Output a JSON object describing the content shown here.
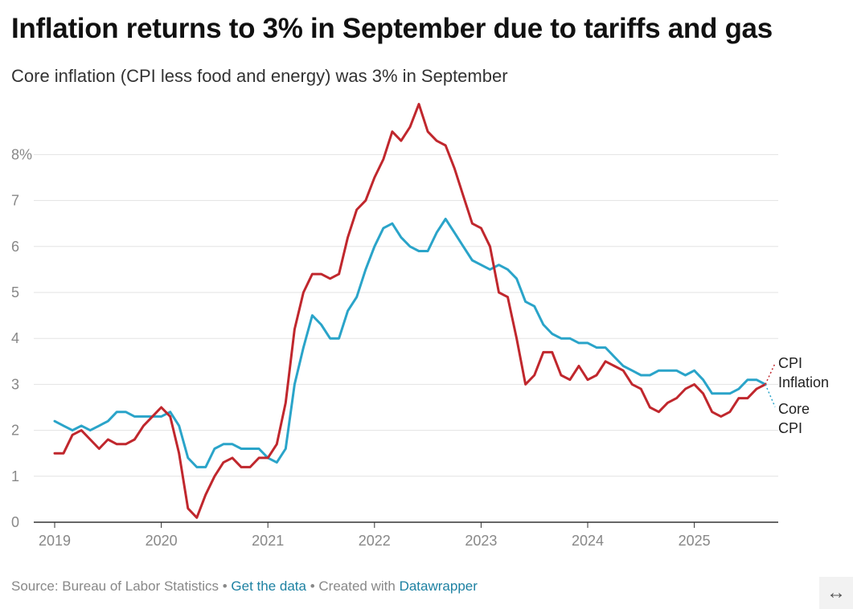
{
  "title": "Inflation returns to 3% in September due to tariffs and gas",
  "subtitle": "Core inflation (CPI less food and energy) was 3% in September",
  "footer": {
    "source": "Source: Bureau of Labor Statistics",
    "sep1": "•",
    "get_data": "Get the data",
    "sep2": "•",
    "created": "Created with",
    "datawrapper": "Datawrapper"
  },
  "expand_icon": "↔",
  "colors": {
    "cpi": "#c0272d",
    "core": "#2aa4c9",
    "grid": "#e3e3e3",
    "axis": "#333333"
  },
  "chart_data": {
    "type": "line",
    "x_start": "2019-01",
    "x_end": "2025-09",
    "frequency": "monthly",
    "y_ticks": [
      {
        "value": 0,
        "label": "0"
      },
      {
        "value": 1,
        "label": "1"
      },
      {
        "value": 2,
        "label": "2"
      },
      {
        "value": 3,
        "label": "3"
      },
      {
        "value": 4,
        "label": "4"
      },
      {
        "value": 5,
        "label": "5"
      },
      {
        "value": 6,
        "label": "6"
      },
      {
        "value": 7,
        "label": "7"
      },
      {
        "value": 8,
        "label": "8%"
      }
    ],
    "x_ticks": [
      "2019",
      "2020",
      "2021",
      "2022",
      "2023",
      "2024",
      "2025"
    ],
    "ylim": [
      0,
      9
    ],
    "grid": true,
    "series": [
      {
        "name": "CPI Inflation",
        "label_lines": [
          "CPI",
          "Inflation"
        ],
        "color": "#c0272d",
        "values": [
          1.5,
          1.5,
          1.9,
          2.0,
          1.8,
          1.6,
          1.8,
          1.7,
          1.7,
          1.8,
          2.1,
          2.3,
          2.5,
          2.3,
          1.5,
          0.3,
          0.1,
          0.6,
          1.0,
          1.3,
          1.4,
          1.2,
          1.2,
          1.4,
          1.4,
          1.7,
          2.6,
          4.2,
          5.0,
          5.4,
          5.4,
          5.3,
          5.4,
          6.2,
          6.8,
          7.0,
          7.5,
          7.9,
          8.5,
          8.3,
          8.6,
          9.1,
          8.5,
          8.3,
          8.2,
          7.7,
          7.1,
          6.5,
          6.4,
          6.0,
          5.0,
          4.9,
          4.0,
          3.0,
          3.2,
          3.7,
          3.7,
          3.2,
          3.1,
          3.4,
          3.1,
          3.2,
          3.5,
          3.4,
          3.3,
          3.0,
          2.9,
          2.5,
          2.4,
          2.6,
          2.7,
          2.9,
          3.0,
          2.8,
          2.4,
          2.3,
          2.4,
          2.7,
          2.7,
          2.9,
          3.0
        ]
      },
      {
        "name": "Core CPI",
        "label_lines": [
          "Core",
          "CPI"
        ],
        "color": "#2aa4c9",
        "values": [
          2.2,
          2.1,
          2.0,
          2.1,
          2.0,
          2.1,
          2.2,
          2.4,
          2.4,
          2.3,
          2.3,
          2.3,
          2.3,
          2.4,
          2.1,
          1.4,
          1.2,
          1.2,
          1.6,
          1.7,
          1.7,
          1.6,
          1.6,
          1.6,
          1.4,
          1.3,
          1.6,
          3.0,
          3.8,
          4.5,
          4.3,
          4.0,
          4.0,
          4.6,
          4.9,
          5.5,
          6.0,
          6.4,
          6.5,
          6.2,
          6.0,
          5.9,
          5.9,
          6.3,
          6.6,
          6.3,
          6.0,
          5.7,
          5.6,
          5.5,
          5.6,
          5.5,
          5.3,
          4.8,
          4.7,
          4.3,
          4.1,
          4.0,
          4.0,
          3.9,
          3.9,
          3.8,
          3.8,
          3.6,
          3.4,
          3.3,
          3.2,
          3.2,
          3.3,
          3.3,
          3.3,
          3.2,
          3.3,
          3.1,
          2.8,
          2.8,
          2.8,
          2.9,
          3.1,
          3.1,
          3.0
        ]
      }
    ]
  }
}
